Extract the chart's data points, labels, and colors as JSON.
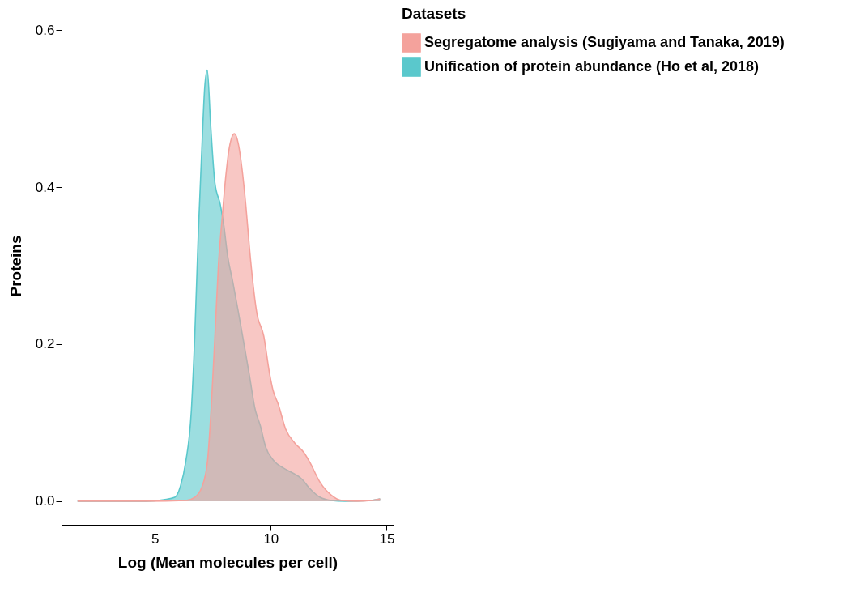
{
  "chart_data": {
    "type": "area",
    "xlabel": "Log (Mean molecules per cell)",
    "ylabel": "Proteins",
    "legend_title": "Datasets",
    "legend": "right",
    "grid": false,
    "xlim": [
      0.97,
      15.3
    ],
    "ylim": [
      -0.03,
      0.63
    ],
    "xticks": [
      5,
      10,
      15
    ],
    "yticks": [
      {
        "value": 0,
        "label": "0.0"
      },
      {
        "value": 0.2,
        "label": "0.2"
      },
      {
        "value": 0.4,
        "label": "0.4"
      },
      {
        "value": 0.6,
        "label": "0.6"
      }
    ],
    "series": [
      {
        "name": "Segregatome analysis (Sugiyama and Tanaka, 2019)",
        "color": "#f4a29c",
        "x": [
          1.66,
          4.61,
          6.33,
          6.72,
          7.04,
          7.27,
          7.43,
          7.59,
          7.74,
          7.9,
          8.06,
          8.21,
          8.43,
          8.6,
          8.76,
          8.92,
          9.08,
          9.23,
          9.39,
          9.7,
          9.94,
          10.09,
          10.33,
          10.64,
          11.04,
          11.43,
          11.66,
          12.13,
          12.6,
          13.07,
          13.7,
          14.33,
          14.72
        ],
        "values": [
          0,
          0,
          0.001,
          0.005,
          0.019,
          0.051,
          0.119,
          0.21,
          0.3,
          0.36,
          0.414,
          0.45,
          0.468,
          0.455,
          0.423,
          0.378,
          0.323,
          0.278,
          0.241,
          0.21,
          0.164,
          0.142,
          0.123,
          0.092,
          0.074,
          0.062,
          0.051,
          0.024,
          0.008,
          0.001,
          0,
          0.001,
          0.003
        ]
      },
      {
        "name": "Unification of protein abundance (Ho et al, 2018)",
        "color": "#5ac8cc",
        "x": [
          1.66,
          4.61,
          5.39,
          5.86,
          6.1,
          6.33,
          6.57,
          6.72,
          6.88,
          7.04,
          7.15,
          7.26,
          7.4,
          7.59,
          7.82,
          7.98,
          8.13,
          8.37,
          8.6,
          8.84,
          9.08,
          9.31,
          9.55,
          9.78,
          10.09,
          10.56,
          10.88,
          11.35,
          11.66,
          12.13,
          12.6,
          13.2,
          14.33,
          14.72
        ],
        "values": [
          0,
          0,
          0.002,
          0.005,
          0.019,
          0.05,
          0.114,
          0.21,
          0.346,
          0.459,
          0.527,
          0.549,
          0.482,
          0.405,
          0.378,
          0.35,
          0.314,
          0.278,
          0.241,
          0.201,
          0.16,
          0.119,
          0.096,
          0.069,
          0.053,
          0.042,
          0.037,
          0.028,
          0.017,
          0.005,
          0.001,
          0,
          0.001,
          0.003
        ]
      }
    ]
  }
}
